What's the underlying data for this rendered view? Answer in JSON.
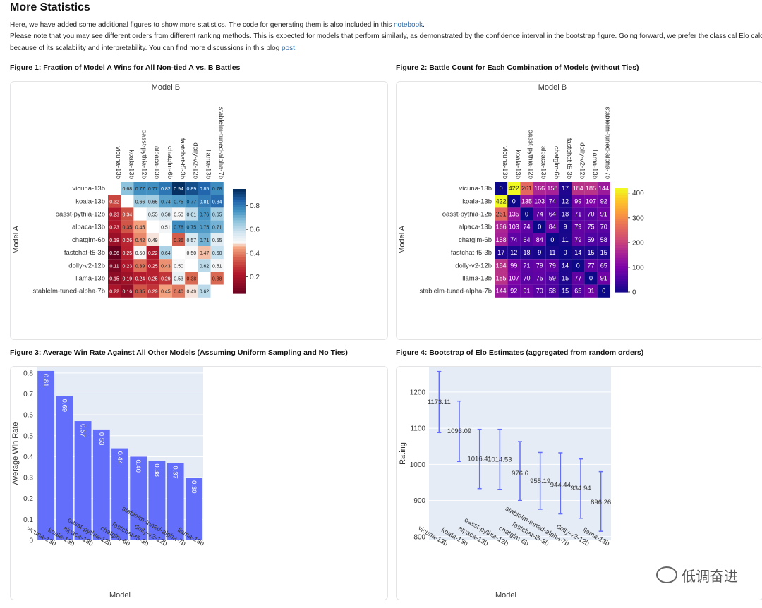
{
  "page": {
    "title": "More Statistics",
    "intro_line1_a": "Here, we have added some additional figures to show more statistics. The code for generating them is also included in this ",
    "intro_link1": "notebook",
    "intro_line1_b": ".",
    "intro_line2": "Please note that you may see different orders from different ranking methods. This is expected for models that perform similarly, as demonstrated by the confidence interval in the bootstrap figure. Going forward, we prefer the classical Elo calculation",
    "intro_line3_a": "because of its scalability and interpretability. You can find more discussions in this blog ",
    "intro_link2": "post",
    "intro_line3_b": ".",
    "watermark": "低调奋进"
  },
  "figures": {
    "fig1_title": "Figure 1: Fraction of Model A Wins for All Non-tied A vs. B Battles",
    "fig2_title": "Figure 2: Battle Count for Each Combination of Models (without Ties)",
    "fig3_title": "Figure 3: Average Win Rate Against All Other Models (Assuming Uniform Sampling and No Ties)",
    "fig4_title": "Figure 4: Bootstrap of Elo Estimates (aggregated from random orders)"
  },
  "chart_data": [
    {
      "type": "heatmap",
      "xlabel": "Model B",
      "ylabel": "Model A",
      "models": [
        "vicuna-13b",
        "koala-13b",
        "oasst-pythia-12b",
        "alpaca-13b",
        "chatglm-6b",
        "fastchat-t5-3b",
        "dolly-v2-12b",
        "llama-13b",
        "stablelm-tuned-alpha-7b"
      ],
      "values": [
        [
          null,
          0.68,
          0.77,
          0.77,
          0.82,
          0.94,
          0.89,
          0.85,
          0.78
        ],
        [
          0.32,
          null,
          0.66,
          0.65,
          0.74,
          0.75,
          0.77,
          0.81,
          0.84
        ],
        [
          0.23,
          0.34,
          null,
          0.55,
          0.58,
          0.5,
          0.61,
          0.76,
          0.65
        ],
        [
          0.23,
          0.35,
          0.45,
          null,
          0.51,
          0.78,
          0.75,
          0.75,
          0.71
        ],
        [
          0.18,
          0.26,
          0.42,
          0.49,
          null,
          0.36,
          0.57,
          0.71,
          0.55
        ],
        [
          0.06,
          0.25,
          0.5,
          0.22,
          0.64,
          null,
          0.5,
          0.47,
          0.6
        ],
        [
          0.11,
          0.23,
          0.39,
          0.25,
          0.43,
          0.5,
          null,
          0.62,
          0.51
        ],
        [
          0.15,
          0.19,
          0.24,
          0.25,
          0.29,
          0.53,
          0.38,
          null,
          0.38
        ],
        [
          0.22,
          0.16,
          0.35,
          0.29,
          0.45,
          0.4,
          0.49,
          0.62,
          null
        ]
      ],
      "colorscale": "RdBu",
      "colorbar_ticks": [
        0.2,
        0.4,
        0.6,
        0.8
      ]
    },
    {
      "type": "heatmap",
      "xlabel": "Model B",
      "ylabel": "Model A",
      "models": [
        "vicuna-13b",
        "koala-13b",
        "oasst-pythia-12b",
        "alpaca-13b",
        "chatglm-6b",
        "fastchat-t5-3b",
        "dolly-v2-12b",
        "llama-13b",
        "stablelm-tuned-alpha-7b"
      ],
      "values": [
        [
          0,
          422,
          261,
          166,
          158,
          17,
          184,
          185,
          144
        ],
        [
          422,
          0,
          135,
          103,
          74,
          12,
          99,
          107,
          92
        ],
        [
          261,
          135,
          0,
          74,
          64,
          18,
          71,
          70,
          91
        ],
        [
          166,
          103,
          74,
          0,
          84,
          9,
          79,
          75,
          70
        ],
        [
          158,
          74,
          64,
          84,
          0,
          11,
          79,
          59,
          58
        ],
        [
          17,
          12,
          18,
          9,
          11,
          0,
          14,
          15,
          15
        ],
        [
          184,
          99,
          71,
          79,
          79,
          14,
          0,
          77,
          65
        ],
        [
          185,
          107,
          70,
          75,
          59,
          15,
          77,
          0,
          91
        ],
        [
          144,
          92,
          91,
          70,
          58,
          15,
          65,
          91,
          0
        ]
      ],
      "colorscale": "Plasma",
      "colorbar_ticks": [
        0,
        100,
        200,
        300,
        400
      ]
    },
    {
      "type": "bar",
      "xlabel": "Model",
      "ylabel": "Average Win Rate",
      "categories": [
        "vicuna-13b",
        "koala-13b",
        "alpaca-13b",
        "oasst-pythia-12b",
        "chatglm-6b",
        "fastchat-t5-3b",
        "dolly-v2-12b",
        "stablelm-tuned-alpha-7b",
        "llama-13b"
      ],
      "values": [
        0.81,
        0.69,
        0.57,
        0.53,
        0.44,
        0.4,
        0.38,
        0.37,
        0.3
      ],
      "labels": [
        "0.81",
        "0.69",
        "0.57",
        "0.53",
        "0.44",
        "0.40",
        "0.38",
        "0.37",
        "0.30"
      ],
      "ylim": [
        0,
        0.83
      ],
      "yticks": [
        0,
        0.1,
        0.2,
        0.3,
        0.4,
        0.5,
        0.6,
        0.7,
        0.8
      ],
      "color": "#636efa"
    },
    {
      "type": "scatter",
      "xlabel": "Model",
      "ylabel": "Rating",
      "categories": [
        "vicuna-13b",
        "koala-13b",
        "alpaca-13b",
        "oasst-pythia-12b",
        "chatglm-6b",
        "fastchat-t5-3b",
        "stablelm-tuned-alpha-7b",
        "dolly-v2-12b",
        "llama-13b"
      ],
      "values": [
        1173.11,
        1093.09,
        1016.41,
        1014.53,
        976.6,
        955.19,
        944.44,
        934.94,
        896.26
      ],
      "labels": [
        "1173.11",
        "1093.09",
        "1016.41",
        "1014.53",
        "976.6",
        "955.19",
        "944.44",
        "934.94",
        "896.26"
      ],
      "error_low": [
        1088,
        1008,
        933,
        931,
        900,
        876,
        863,
        851,
        815
      ],
      "error_high": [
        1257,
        1175,
        1097,
        1097,
        1063,
        1033,
        1032,
        1015,
        980
      ],
      "ylim": [
        790,
        1270
      ],
      "yticks": [
        800,
        900,
        1000,
        1100,
        1200
      ],
      "color": "#636efa"
    }
  ]
}
